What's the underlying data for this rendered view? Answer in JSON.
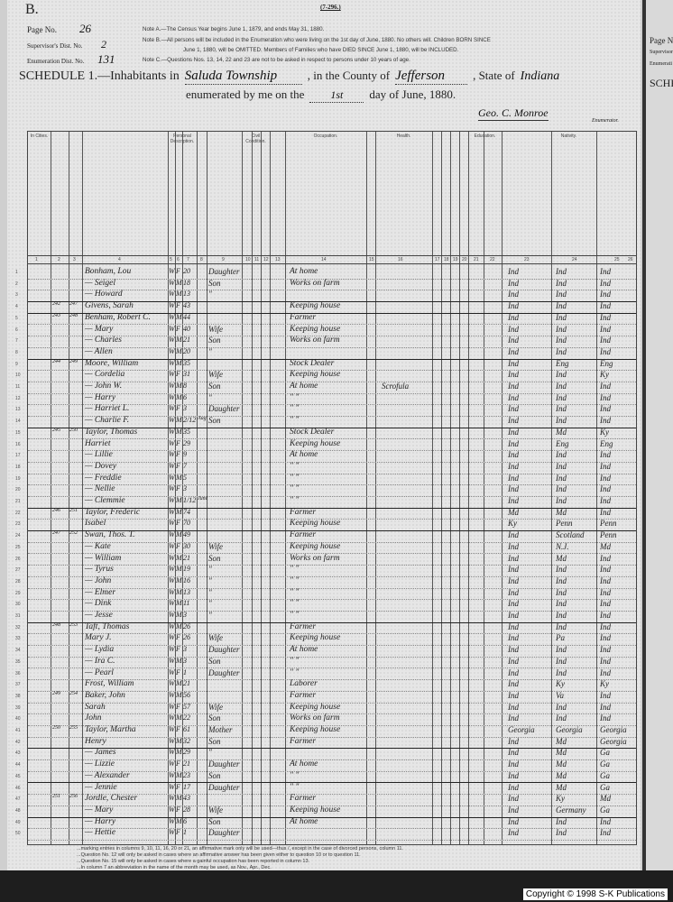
{
  "header": {
    "form_code": "(7-296.)",
    "letter": "B.",
    "page_no_label": "Page No.",
    "page_no": "26",
    "supervisor_label": "Supervisor's Dist. No.",
    "supervisor_no": "2",
    "enumeration_label": "Enumeration Dist. No.",
    "enumeration_no": "131",
    "note_a": "Note A.—The Census Year begins June 1, 1879, and ends May 31, 1880.",
    "note_b1": "Note B.—All persons will be included in the Enumeration who were living on the 1st day of June, 1880. No others will. Children BORN SINCE",
    "note_b2": "June 1, 1880, will be OMITTED. Members of Families who have DIED SINCE June 1, 1880, will be INCLUDED.",
    "note_c": "Note C.—Questions Nos. 13, 14, 22 and 23 are not to be asked in respect to persons under 10 years of age.",
    "schedule_label": "SCHEDULE 1.—Inhabitants in",
    "township": "Saluda Township",
    "county_label": ", in the County of",
    "county": "Jefferson",
    "state_label": ", State of",
    "state": "Indiana",
    "enumerated_label": "enumerated by me on the",
    "day": "1st",
    "day_suffix": "day of June, 1880.",
    "enumerator": "Geo. C. Monroe",
    "enumerator_label": "Enumerator."
  },
  "column_groups": [
    "In Cities.",
    "Personal Description.",
    "Civil Condition.",
    "Occupation.",
    "Health.",
    "Education.",
    "Nativity."
  ],
  "column_numbers": [
    "1",
    "2",
    "3",
    "4",
    "5",
    "6",
    "7",
    "8",
    "9",
    "10",
    "11",
    "12",
    "13",
    "14",
    "15",
    "16",
    "17",
    "18",
    "19",
    "20",
    "21",
    "22",
    "23",
    "24",
    "25",
    "26"
  ],
  "rows": [
    {
      "n": "1",
      "dw": "",
      "fm": "",
      "name": "Bonham, Lou",
      "c": "W",
      "s": "F",
      "a": "20",
      "mo": "",
      "rel": "Daughter",
      "occ": "At home",
      "health": "",
      "b": "Ind",
      "fb": "Ind",
      "mb": "Ind"
    },
    {
      "n": "2",
      "dw": "",
      "fm": "",
      "name": "— Seigel",
      "c": "W",
      "s": "M",
      "a": "18",
      "mo": "",
      "rel": "Son",
      "occ": "Works on farm",
      "health": "",
      "b": "Ind",
      "fb": "Ind",
      "mb": "Ind"
    },
    {
      "n": "3",
      "dw": "",
      "fm": "",
      "name": "— Howard",
      "c": "W",
      "s": "M",
      "a": "13",
      "mo": "",
      "rel": "\"",
      "occ": "",
      "health": "",
      "b": "Ind",
      "fb": "Ind",
      "mb": "Ind",
      "end": true
    },
    {
      "n": "4",
      "dw": "242",
      "fm": "247",
      "name": "Givens, Sarah",
      "c": "W",
      "s": "F",
      "a": "43",
      "mo": "",
      "rel": "",
      "occ": "Keeping house",
      "health": "",
      "b": "Ind",
      "fb": "Ind",
      "mb": "Ind",
      "end": true
    },
    {
      "n": "5",
      "dw": "243",
      "fm": "248",
      "name": "Benham, Robert C.",
      "c": "W",
      "s": "M",
      "a": "44",
      "mo": "",
      "rel": "",
      "occ": "Farmer",
      "health": "",
      "b": "Ind",
      "fb": "Ind",
      "mb": "Ind"
    },
    {
      "n": "6",
      "dw": "",
      "fm": "",
      "name": "— Mary",
      "c": "W",
      "s": "F",
      "a": "40",
      "mo": "",
      "rel": "Wife",
      "occ": "Keeping house",
      "health": "",
      "b": "Ind",
      "fb": "Ind",
      "mb": "Ind"
    },
    {
      "n": "7",
      "dw": "",
      "fm": "",
      "name": "— Charles",
      "c": "W",
      "s": "M",
      "a": "21",
      "mo": "",
      "rel": "Son",
      "occ": "Works on farm",
      "health": "",
      "b": "Ind",
      "fb": "Ind",
      "mb": "Ind"
    },
    {
      "n": "8",
      "dw": "",
      "fm": "",
      "name": "— Allen",
      "c": "W",
      "s": "M",
      "a": "20",
      "mo": "",
      "rel": "\"",
      "occ": "",
      "health": "",
      "b": "Ind",
      "fb": "Ind",
      "mb": "Ind",
      "end": true
    },
    {
      "n": "9",
      "dw": "244",
      "fm": "249",
      "name": "Moore, William",
      "c": "W",
      "s": "M",
      "a": "35",
      "mo": "",
      "rel": "",
      "occ": "Stock Dealer",
      "health": "",
      "b": "Ind",
      "fb": "Eng",
      "mb": "Eng"
    },
    {
      "n": "10",
      "dw": "",
      "fm": "",
      "name": "— Cordelia",
      "c": "W",
      "s": "F",
      "a": "31",
      "mo": "",
      "rel": "Wife",
      "occ": "Keeping house",
      "health": "",
      "b": "Ind",
      "fb": "Ind",
      "mb": "Ky"
    },
    {
      "n": "11",
      "dw": "",
      "fm": "",
      "name": "— John W.",
      "c": "W",
      "s": "M",
      "a": "8",
      "mo": "",
      "rel": "Son",
      "occ": "At home",
      "health": "Scrofula",
      "b": "Ind",
      "fb": "Ind",
      "mb": "Ind"
    },
    {
      "n": "12",
      "dw": "",
      "fm": "",
      "name": "— Harry",
      "c": "W",
      "s": "M",
      "a": "6",
      "mo": "",
      "rel": "\"",
      "occ": "\"  \"",
      "health": "",
      "b": "Ind",
      "fb": "Ind",
      "mb": "Ind"
    },
    {
      "n": "13",
      "dw": "",
      "fm": "",
      "name": "— Harriet L.",
      "c": "W",
      "s": "F",
      "a": "3",
      "mo": "",
      "rel": "Daughter",
      "occ": "\"  \"",
      "health": "",
      "b": "Ind",
      "fb": "Ind",
      "mb": "Ind"
    },
    {
      "n": "14",
      "dw": "",
      "fm": "",
      "name": "— Charlie F.",
      "c": "W",
      "s": "M",
      "a": "2/12",
      "mo": "Aug",
      "rel": "Son",
      "occ": "\"  \"",
      "health": "",
      "b": "Ind",
      "fb": "Ind",
      "mb": "Ind",
      "end": true
    },
    {
      "n": "15",
      "dw": "245",
      "fm": "250",
      "name": "Taylor, Thomas",
      "c": "W",
      "s": "M",
      "a": "35",
      "mo": "",
      "rel": "",
      "occ": "Stock Dealer",
      "health": "",
      "b": "Ind",
      "fb": "Md",
      "mb": "Ky"
    },
    {
      "n": "16",
      "dw": "",
      "fm": "",
      "name": "Harriet",
      "c": "W",
      "s": "F",
      "a": "29",
      "mo": "",
      "rel": "",
      "occ": "Keeping house",
      "health": "",
      "b": "Ind",
      "fb": "Eng",
      "mb": "Eng"
    },
    {
      "n": "17",
      "dw": "",
      "fm": "",
      "name": "— Lillie",
      "c": "W",
      "s": "F",
      "a": "9",
      "mo": "",
      "rel": "",
      "occ": "At home",
      "health": "",
      "b": "Ind",
      "fb": "Ind",
      "mb": "Ind"
    },
    {
      "n": "18",
      "dw": "",
      "fm": "",
      "name": "— Dovey",
      "c": "W",
      "s": "F",
      "a": "7",
      "mo": "",
      "rel": "",
      "occ": "\"  \"",
      "health": "",
      "b": "Ind",
      "fb": "Ind",
      "mb": "Ind"
    },
    {
      "n": "19",
      "dw": "",
      "fm": "",
      "name": "— Freddie",
      "c": "W",
      "s": "M",
      "a": "5",
      "mo": "",
      "rel": "",
      "occ": "\"  \"",
      "health": "",
      "b": "Ind",
      "fb": "Ind",
      "mb": "Ind"
    },
    {
      "n": "20",
      "dw": "",
      "fm": "",
      "name": "— Nellie",
      "c": "W",
      "s": "F",
      "a": "3",
      "mo": "",
      "rel": "",
      "occ": "\"  \"",
      "health": "",
      "b": "Ind",
      "fb": "Ind",
      "mb": "Ind"
    },
    {
      "n": "21",
      "dw": "",
      "fm": "",
      "name": "— Clemmie",
      "c": "W",
      "s": "M",
      "a": "1/12",
      "mo": "June",
      "rel": "",
      "occ": "\"  \"",
      "health": "",
      "b": "Ind",
      "fb": "Ind",
      "mb": "Ind",
      "end": true
    },
    {
      "n": "22",
      "dw": "246",
      "fm": "251",
      "name": "Taylor, Frederic",
      "c": "W",
      "s": "M",
      "a": "74",
      "mo": "",
      "rel": "",
      "occ": "Farmer",
      "health": "",
      "b": "Md",
      "fb": "Md",
      "mb": "Ind"
    },
    {
      "n": "23",
      "dw": "",
      "fm": "",
      "name": "Isabel",
      "c": "W",
      "s": "F",
      "a": "70",
      "mo": "",
      "rel": "",
      "occ": "Keeping house",
      "health": "",
      "b": "Ky",
      "fb": "Penn",
      "mb": "Penn",
      "end": true
    },
    {
      "n": "24",
      "dw": "247",
      "fm": "252",
      "name": "Swan, Thos. T.",
      "c": "W",
      "s": "M",
      "a": "49",
      "mo": "",
      "rel": "",
      "occ": "Farmer",
      "health": "",
      "b": "Ind",
      "fb": "Scotland",
      "mb": "Penn"
    },
    {
      "n": "25",
      "dw": "",
      "fm": "",
      "name": "— Kate",
      "c": "W",
      "s": "F",
      "a": "30",
      "mo": "",
      "rel": "Wife",
      "occ": "Keeping house",
      "health": "",
      "b": "Ind",
      "fb": "N.J.",
      "mb": "Md"
    },
    {
      "n": "26",
      "dw": "",
      "fm": "",
      "name": "— William",
      "c": "W",
      "s": "M",
      "a": "21",
      "mo": "",
      "rel": "Son",
      "occ": "Works on farm",
      "health": "",
      "b": "Ind",
      "fb": "Md",
      "mb": "Ind"
    },
    {
      "n": "27",
      "dw": "",
      "fm": "",
      "name": "— Tyrus",
      "c": "W",
      "s": "M",
      "a": "19",
      "mo": "",
      "rel": "\"",
      "occ": "\"  \"",
      "health": "",
      "b": "Ind",
      "fb": "Ind",
      "mb": "Ind"
    },
    {
      "n": "28",
      "dw": "",
      "fm": "",
      "name": "— John",
      "c": "W",
      "s": "M",
      "a": "16",
      "mo": "",
      "rel": "\"",
      "occ": "\"  \"",
      "health": "",
      "b": "Ind",
      "fb": "Ind",
      "mb": "Ind"
    },
    {
      "n": "29",
      "dw": "",
      "fm": "",
      "name": "— Elmer",
      "c": "W",
      "s": "M",
      "a": "13",
      "mo": "",
      "rel": "\"",
      "occ": "\"  \"",
      "health": "",
      "b": "Ind",
      "fb": "Ind",
      "mb": "Ind"
    },
    {
      "n": "30",
      "dw": "",
      "fm": "",
      "name": "— Dink",
      "c": "W",
      "s": "M",
      "a": "11",
      "mo": "",
      "rel": "\"",
      "occ": "\"  \"",
      "health": "",
      "b": "Ind",
      "fb": "Ind",
      "mb": "Ind"
    },
    {
      "n": "31",
      "dw": "",
      "fm": "",
      "name": "— Jesse",
      "c": "W",
      "s": "M",
      "a": "3",
      "mo": "",
      "rel": "\"",
      "occ": "\"  \"",
      "health": "",
      "b": "Ind",
      "fb": "Ind",
      "mb": "Ind",
      "end": true
    },
    {
      "n": "32",
      "dw": "248",
      "fm": "253",
      "name": "Taft, Thomas",
      "c": "W",
      "s": "M",
      "a": "26",
      "mo": "",
      "rel": "",
      "occ": "Farmer",
      "health": "",
      "b": "Ind",
      "fb": "Ind",
      "mb": "Ind"
    },
    {
      "n": "33",
      "dw": "",
      "fm": "",
      "name": "Mary J.",
      "c": "W",
      "s": "F",
      "a": "26",
      "mo": "",
      "rel": "Wife",
      "occ": "Keeping house",
      "health": "",
      "b": "Ind",
      "fb": "Pa",
      "mb": "Ind"
    },
    {
      "n": "34",
      "dw": "",
      "fm": "",
      "name": "— Lydia",
      "c": "W",
      "s": "F",
      "a": "3",
      "mo": "",
      "rel": "Daughter",
      "occ": "At home",
      "health": "",
      "b": "Ind",
      "fb": "Ind",
      "mb": "Ind"
    },
    {
      "n": "35",
      "dw": "",
      "fm": "",
      "name": "— Ira C.",
      "c": "W",
      "s": "M",
      "a": "3",
      "mo": "",
      "rel": "Son",
      "occ": "\"  \"",
      "health": "",
      "b": "Ind",
      "fb": "Ind",
      "mb": "Ind"
    },
    {
      "n": "36",
      "dw": "",
      "fm": "",
      "name": "— Pearl",
      "c": "W",
      "s": "F",
      "a": "1",
      "mo": "",
      "rel": "Daughter",
      "occ": "\"  \"",
      "health": "",
      "b": "Ind",
      "fb": "Ind",
      "mb": "Ind"
    },
    {
      "n": "37",
      "dw": "",
      "fm": "",
      "name": "Frost, William",
      "c": "W",
      "s": "M",
      "a": "21",
      "mo": "",
      "rel": "",
      "occ": "Laborer",
      "health": "",
      "b": "Ind",
      "fb": "Ky",
      "mb": "Ky"
    },
    {
      "n": "38",
      "dw": "249",
      "fm": "254",
      "name": "Baker, John",
      "c": "W",
      "s": "M",
      "a": "56",
      "mo": "",
      "rel": "",
      "occ": "Farmer",
      "health": "",
      "b": "Ind",
      "fb": "Va",
      "mb": "Ind"
    },
    {
      "n": "39",
      "dw": "",
      "fm": "",
      "name": "Sarah",
      "c": "W",
      "s": "F",
      "a": "57",
      "mo": "",
      "rel": "Wife",
      "occ": "Keeping house",
      "health": "",
      "b": "Ind",
      "fb": "Ind",
      "mb": "Ind"
    },
    {
      "n": "40",
      "dw": "",
      "fm": "",
      "name": "John",
      "c": "W",
      "s": "M",
      "a": "22",
      "mo": "",
      "rel": "Son",
      "occ": "Works on farm",
      "health": "",
      "b": "Ind",
      "fb": "Ind",
      "mb": "Ind"
    },
    {
      "n": "41",
      "dw": "250",
      "fm": "255",
      "name": "Taylor, Martha",
      "c": "W",
      "s": "F",
      "a": "61",
      "mo": "",
      "rel": "Mother",
      "occ": "Keeping house",
      "health": "",
      "b": "Georgia",
      "fb": "Georgia",
      "mb": "Georgia"
    },
    {
      "n": "42",
      "dw": "",
      "fm": "",
      "name": "Henry",
      "c": "W",
      "s": "M",
      "a": "32",
      "mo": "",
      "rel": "Son",
      "occ": "Farmer",
      "health": "",
      "b": "Ind",
      "fb": "Md",
      "mb": "Georgia",
      "end": true
    },
    {
      "n": "43",
      "dw": "",
      "fm": "",
      "name": "— James",
      "c": "W",
      "s": "M",
      "a": "29",
      "mo": "",
      "rel": "\"",
      "occ": "",
      "health": "",
      "b": "Ind",
      "fb": "Md",
      "mb": "Ga"
    },
    {
      "n": "44",
      "dw": "",
      "fm": "",
      "name": "— Lizzie",
      "c": "W",
      "s": "F",
      "a": "21",
      "mo": "",
      "rel": "Daughter",
      "occ": "At home",
      "health": "",
      "b": "Ind",
      "fb": "Md",
      "mb": "Ga"
    },
    {
      "n": "45",
      "dw": "",
      "fm": "",
      "name": "— Alexander",
      "c": "W",
      "s": "M",
      "a": "23",
      "mo": "",
      "rel": "Son",
      "occ": "\"  \"",
      "health": "",
      "b": "Ind",
      "fb": "Md",
      "mb": "Ga",
      "end": true
    },
    {
      "n": "46",
      "dw": "",
      "fm": "",
      "name": "— Jennie",
      "c": "W",
      "s": "F",
      "a": "17",
      "mo": "",
      "rel": "Daughter",
      "occ": "\"  \"",
      "health": "",
      "b": "Ind",
      "fb": "Md",
      "mb": "Ga"
    },
    {
      "n": "47",
      "dw": "251",
      "fm": "256",
      "name": "Jordle, Chester",
      "c": "W",
      "s": "M",
      "a": "43",
      "mo": "",
      "rel": "",
      "occ": "Farmer",
      "health": "",
      "b": "Ind",
      "fb": "Ky",
      "mb": "Md"
    },
    {
      "n": "48",
      "dw": "",
      "fm": "",
      "name": "— Mary",
      "c": "W",
      "s": "F",
      "a": "28",
      "mo": "",
      "rel": "Wife",
      "occ": "Keeping house",
      "health": "",
      "b": "Ind",
      "fb": "Germany",
      "mb": "Ga",
      "end": true
    },
    {
      "n": "49",
      "dw": "",
      "fm": "",
      "name": "— Harry",
      "c": "W",
      "s": "M",
      "a": "6",
      "mo": "",
      "rel": "Son",
      "occ": "At home",
      "health": "",
      "b": "Ind",
      "fb": "Ind",
      "mb": "Ind"
    },
    {
      "n": "50",
      "dw": "",
      "fm": "",
      "name": "— Hettie",
      "c": "W",
      "s": "F",
      "a": "1",
      "mo": "",
      "rel": "Daughter",
      "occ": "",
      "health": "",
      "b": "Ind",
      "fb": "Ind",
      "mb": "Ind"
    }
  ],
  "footer": {
    "line1": "...marking entries in columns 9, 10, 11, 16, 20 or 21, an affirmative mark only will be used—thus /, except in the case of divorced persons, column 11.",
    "line2": "...Question No. 12 will only be asked in cases where an affirmative answer has been given either to question 10 or to question 11.",
    "line3": "...Question No. 15 will only be asked in cases where a gainful occupation has been reported in column 13.",
    "line4": "...In column 7 an abbreviation in the name of the month may be used, as Nov., Apr., Dec."
  },
  "adjacent_page": {
    "page_label": "Page No",
    "supervisor": "Supervisor",
    "enumeration": "Enumerati",
    "schedule": "SCHED"
  },
  "copyright": "Copyright © 1998 S-K Publications"
}
